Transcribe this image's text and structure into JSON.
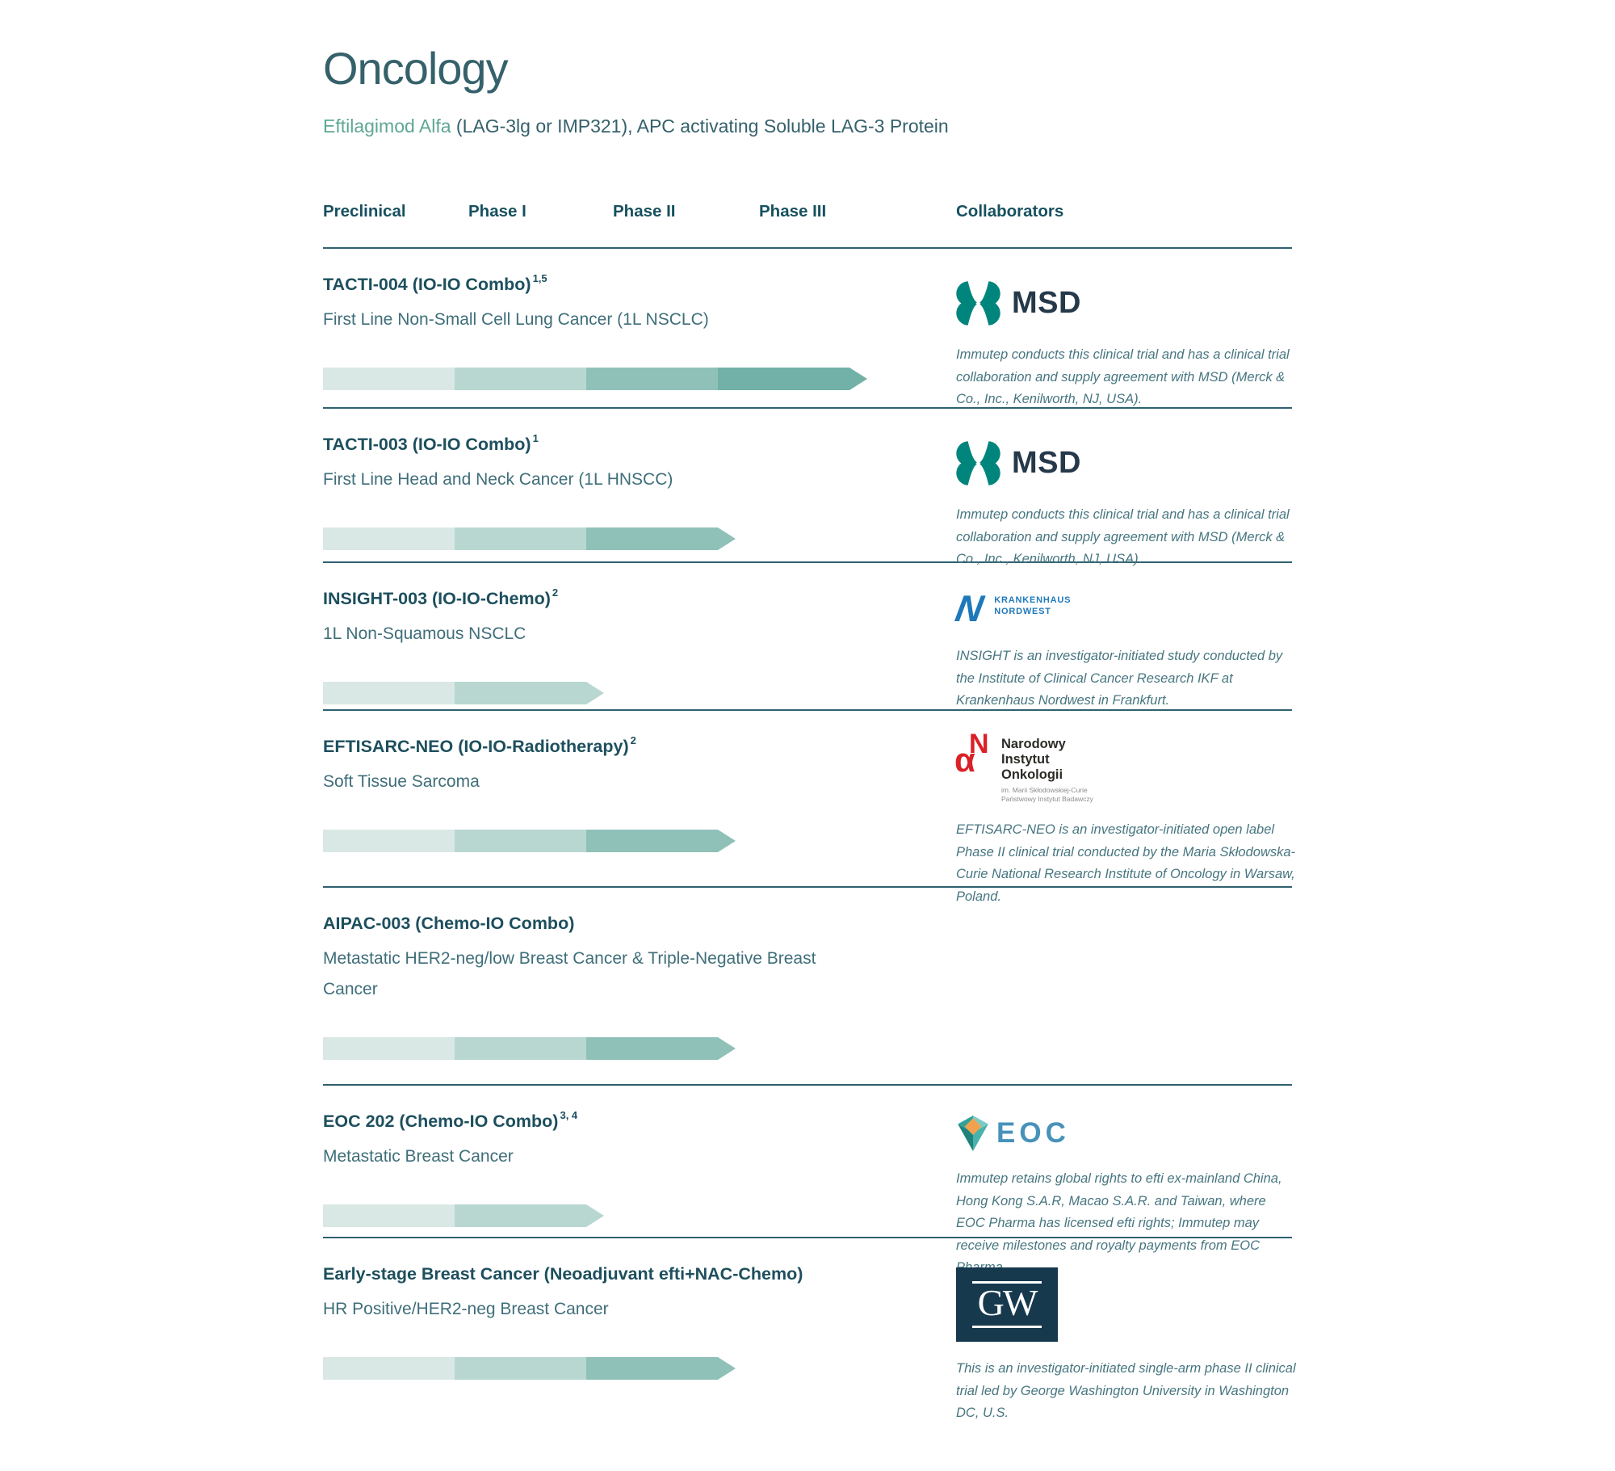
{
  "page": {
    "title": "Oncology",
    "subtitle": {
      "drug": "Eftilagimod Alfa",
      "rest": " (LAG-3lg or IMP321), APC activating Soluble LAG-3 Protein"
    }
  },
  "columns": [
    "Preclinical",
    "Phase I",
    "Phase II",
    "Phase III",
    "Collaborators"
  ],
  "phase_colors": [
    "#d9e8e4",
    "#b8d7d1",
    "#90c1b9",
    "#72b1a8"
  ],
  "rows": [
    {
      "name": "TACTI-004 (IO-IO Combo)",
      "superscript": "1,5",
      "description": "First Line Non-Small Cell Lung Cancer (1L NSCLC)",
      "phases_reached": 4,
      "furthest_phase": "Phase III",
      "collaborator": {
        "logo": "msd-logo",
        "logo_text": "MSD",
        "text": "Immutep conducts this clinical trial and has a clinical trial collaboration and supply agreement with MSD (Merck & Co., Inc., Kenilworth, NJ, USA)."
      }
    },
    {
      "name": "TACTI-003 (IO-IO Combo)",
      "superscript": "1",
      "description": "First Line Head and Neck Cancer (1L HNSCC)",
      "phases_reached": 3,
      "furthest_phase": "Phase II",
      "collaborator": {
        "logo": "msd-logo",
        "logo_text": "MSD",
        "text": "Immutep conducts this clinical trial and has a clinical trial collaboration and supply agreement with MSD (Merck & Co., Inc., Kenilworth, NJ, USA)."
      }
    },
    {
      "name": "INSIGHT-003 (IO-IO-Chemo)",
      "superscript": "2",
      "description": "1L Non-Squamous NSCLC",
      "phases_reached": 2,
      "furthest_phase": "Phase I",
      "collaborator": {
        "logo": "krankenhaus-nordwest-logo",
        "logo_line1": "KRANKENHAUS",
        "logo_line2": "NORDWEST",
        "logo_mark": "N",
        "text": "INSIGHT is an investigator-initiated study conducted by the Institute of Clinical Cancer Research IKF at Krankenhaus Nordwest in Frankfurt."
      }
    },
    {
      "name": "EFTISARC-NEO (IO-IO-Radiotherapy)",
      "superscript": "2",
      "description": "Soft Tissue Sarcoma",
      "phases_reached": 3,
      "furthest_phase": "Phase II",
      "collaborator": {
        "logo": "narodowy-instytut-onkologii-logo",
        "logo_line1": "Narodowy",
        "logo_line2": "Instytut",
        "logo_line3": "Onkologii",
        "logo_small1": "im. Marii Skłodowskiej-Curie",
        "logo_small2": "Państwowy Instytut Badawczy",
        "text": "EFTISARC-NEO is an investigator-initiated open label Phase II clinical trial conducted by the Maria Skłodowska-Curie National Research Institute of Oncology in Warsaw, Poland."
      }
    },
    {
      "name": "AIPAC-003 (Chemo-IO Combo)",
      "superscript": "",
      "description": "Metastatic HER2-neg/low Breast Cancer & Triple-Negative Breast Cancer",
      "phases_reached": 3,
      "furthest_phase": "Phase II",
      "collaborator": null
    },
    {
      "name": "EOC 202 (Chemo-IO Combo)",
      "superscript": "3, 4",
      "description": "Metastatic Breast Cancer",
      "phases_reached": 2,
      "furthest_phase": "Phase I",
      "collaborator": {
        "logo": "eoc-logo",
        "logo_text": "EOC",
        "text": "Immutep retains global rights to efti ex-mainland China, Hong Kong S.A.R, Macao S.A.R. and Taiwan, where EOC Pharma has licensed efti rights; Immutep may receive milestones and royalty payments from EOC Pharma."
      }
    },
    {
      "name": "Early-stage Breast Cancer (Neoadjuvant efti+NAC-Chemo)",
      "superscript": "",
      "description": "HR Positive/HER2-neg Breast Cancer",
      "phases_reached": 3,
      "furthest_phase": "Phase II",
      "collaborator": {
        "logo": "gw-logo",
        "logo_text": "GW",
        "text": "This is an investigator-initiated single-arm phase II clinical trial led by George Washington University in Washington DC, U.S."
      }
    }
  ]
}
